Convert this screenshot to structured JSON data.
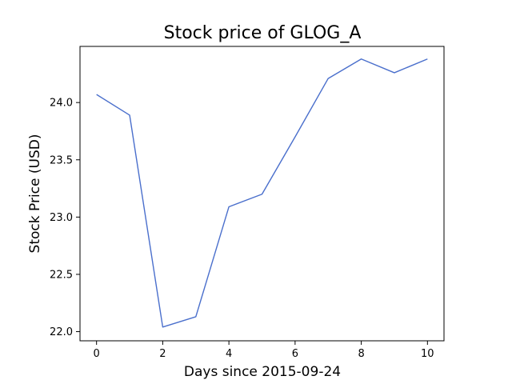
{
  "chart_data": {
    "type": "line",
    "title": "Stock price of GLOG_A",
    "xlabel": "Days since 2015-09-24",
    "ylabel": "Stock Price (USD)",
    "x": [
      0,
      1,
      2,
      3,
      4,
      5,
      6,
      7,
      8,
      9,
      10
    ],
    "series": [
      {
        "values": [
          24.07,
          23.89,
          22.04,
          22.13,
          23.09,
          23.2,
          23.7,
          24.21,
          24.38,
          24.26,
          24.38
        ]
      }
    ],
    "xlim": [
      -0.5,
      10.5
    ],
    "ylim": [
      21.92,
      24.49
    ],
    "xticks": [
      0,
      2,
      4,
      6,
      8,
      10
    ],
    "yticks": [
      22.0,
      22.5,
      23.0,
      23.5,
      24.0
    ],
    "xtick_labels": [
      "0",
      "2",
      "4",
      "6",
      "8",
      "10"
    ],
    "ytick_labels": [
      "22.0",
      "22.5",
      "23.0",
      "23.5",
      "24.0"
    ],
    "grid": false,
    "line_color": "#4a6fcc"
  }
}
